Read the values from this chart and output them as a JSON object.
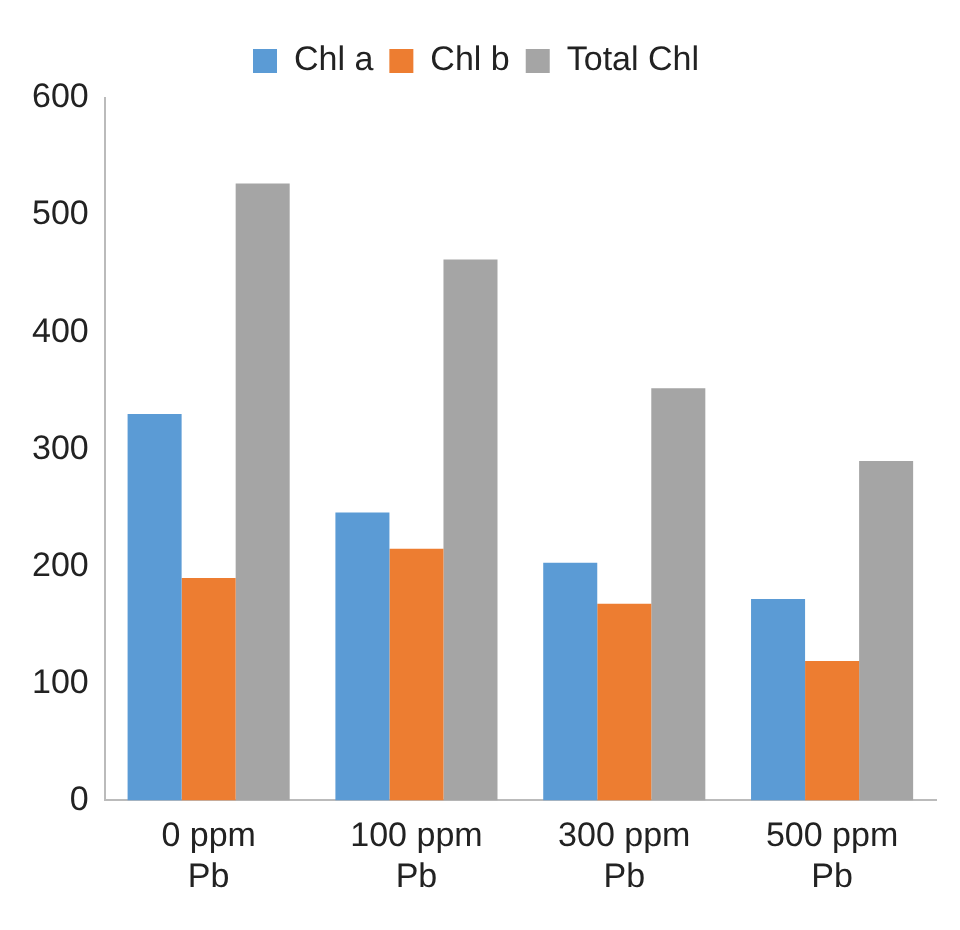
{
  "chart_data": {
    "type": "bar",
    "categories": [
      "0 ppm Pb",
      "100 ppm Pb",
      "300 ppm Pb",
      "500 ppm Pb"
    ],
    "series": [
      {
        "name": "Chl a",
        "color": "#5b9bd5",
        "values": [
          330,
          246,
          203,
          172
        ]
      },
      {
        "name": "Chl b",
        "color": "#ed7d31",
        "values": [
          190,
          215,
          168,
          119
        ]
      },
      {
        "name": "Total Chl",
        "color": "#a5a5a5",
        "values": [
          527,
          462,
          352,
          290
        ]
      }
    ],
    "ylim": [
      0,
      600
    ],
    "yticks": [
      0,
      100,
      200,
      300,
      400,
      500,
      600
    ],
    "grid": false,
    "legend": "top"
  }
}
